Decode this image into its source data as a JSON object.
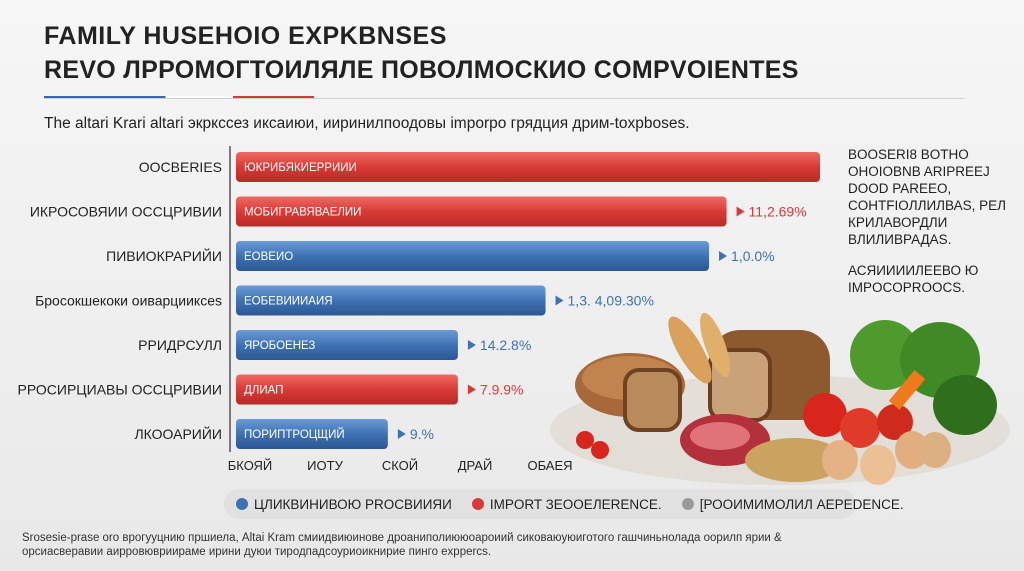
{
  "header": {
    "title_line1": "FAMILY HUSEHOIO EXPKBNSES",
    "title_line2": "REVO ЛРРОМОГТОИЛЯЛЕ ПОВОЛМОСКИО COMPVOIENTES",
    "subtitle": "The altari Krari altari экркссез иксаиюи, ииринилпоодовы imporpo грядция дрим-toxpboses."
  },
  "colors": {
    "red": "#d93a36",
    "blue": "#3f72b3",
    "bar_red_light": "#e05a55"
  },
  "chart_data": {
    "type": "bar",
    "orientation": "horizontal",
    "categories": [
      "OOCBERIES",
      "ИКРОСОВЯИИ ОССЦРИВИИ",
      "ПИВИОКРАРИЙИ",
      "Бросокшекоки оиварцииксеs",
      "РРИДРСУЛЛ",
      "РРОСИРЦИАВЫ ОССЦРИВИИ",
      "ЛКООАРИЙИ"
    ],
    "bar_labels": [
      "ЮКРИБЯКИЕРРИИИ",
      "МОБИГРАВЯВАЕЛИИ",
      "ЕОВЕИО",
      "ЕОБЕВИИИАИЯ",
      "ЯРОБОЕНЕЗ",
      "ДЛИАП",
      "ПОРИПТРОЦЩИЙ"
    ],
    "value_labels": [
      "",
      "11,2.69%",
      "1,0.0%",
      "1,3. 4,09.30%",
      "14.2.8%",
      "7.9.9%",
      "9.%"
    ],
    "values": [
      100,
      84,
      81,
      53,
      38,
      38,
      26
    ],
    "colors": [
      "red",
      "red",
      "blue",
      "blue",
      "blue",
      "red",
      "blue"
    ],
    "xticks": [
      "БКОЯЙ",
      "ИОТУ",
      "СКОЙ",
      "ДРАЙ",
      "ОБАЕЯ"
    ],
    "xlim": [
      0,
      100
    ],
    "grid": false
  },
  "side_notes": [
    "BOOSERI8 BOTHO OHOIOBNB ARIPREEJ DOOD PAREEO, COHTFIOЛЛИЛВАS, PЕЛ КРИЛАВОРДЛИ ВЛИЛИВРАДАS.",
    "АСЯИИИИЛЕЕВО Ю IMPOCOPROOCS."
  ],
  "legend": [
    {
      "label": "ЦЛИКВИНИВОЮ PROCBИИЯИ",
      "color": "#3f72b3"
    },
    {
      "label": "IMPORT ЗЕООЕЛЕRENCE.",
      "color": "#d93a36"
    },
    {
      "label": "[РООИМИМОЛИЛ AEPEDENCE.",
      "color": "#9a9a9a"
    }
  ],
  "footer": "Srosesie-prase oro врогууцнию пршиела, Altai Kram смиидвиюинове дроаниполиююоароиий сиковаюуюиготого гашчиньнолада оорилп ярии & орсиасверавии аирровювриираме ирини дуюи тиродпадсоуриоикнирие пинго exppercs."
}
